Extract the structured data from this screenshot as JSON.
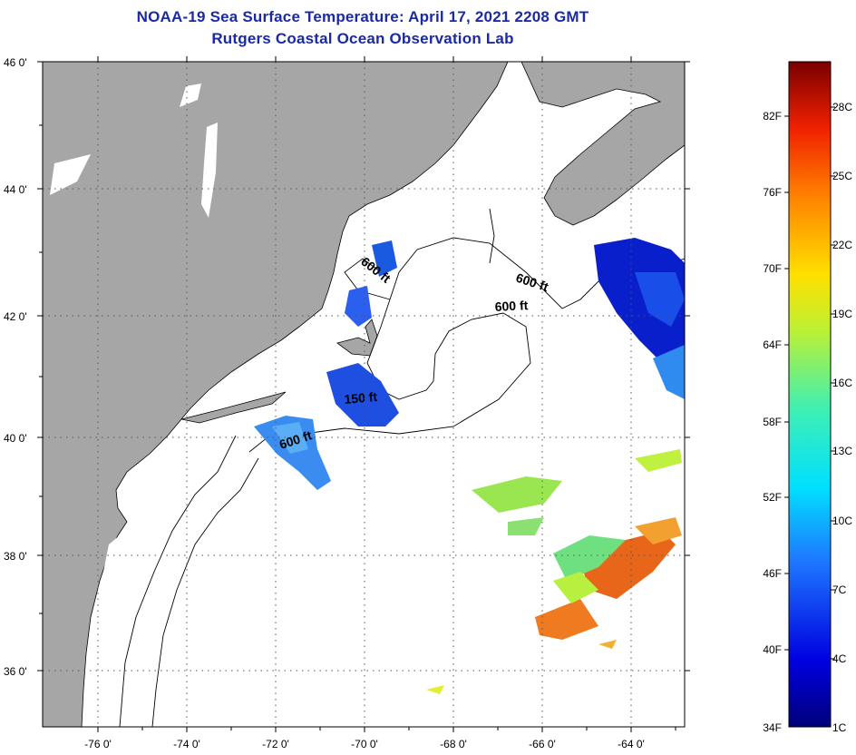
{
  "header": {
    "title": "NOAA-19 Sea Surface Temperature:  April 17, 2021 2208 GMT",
    "subtitle": "Rutgers Coastal Ocean Observation Lab"
  },
  "map": {
    "lat_labels": [
      "46 0'",
      "44 0'",
      "42 0'",
      "40 0'",
      "38 0'",
      "36 0'"
    ],
    "lon_labels": [
      "-76 0'",
      "-74 0'",
      "-72 0'",
      "-70 0'",
      "-68 0'",
      "-66 0'",
      "-64 0'"
    ],
    "contour_labels": [
      "600 ft",
      "600 ft",
      "600 ft",
      "150 ft",
      "600 ft"
    ],
    "land_color": "#a6a6a6",
    "ocean_color": "#ffffff"
  },
  "colorbar": {
    "fahrenheit_labels": [
      "82F",
      "76F",
      "70F",
      "64F",
      "58F",
      "52F",
      "46F",
      "40F",
      "34F"
    ],
    "celsius_labels": [
      "28C",
      "25C",
      "22C",
      "19C",
      "16C",
      "13C",
      "10C",
      "7C",
      "4C",
      "1C"
    ]
  }
}
